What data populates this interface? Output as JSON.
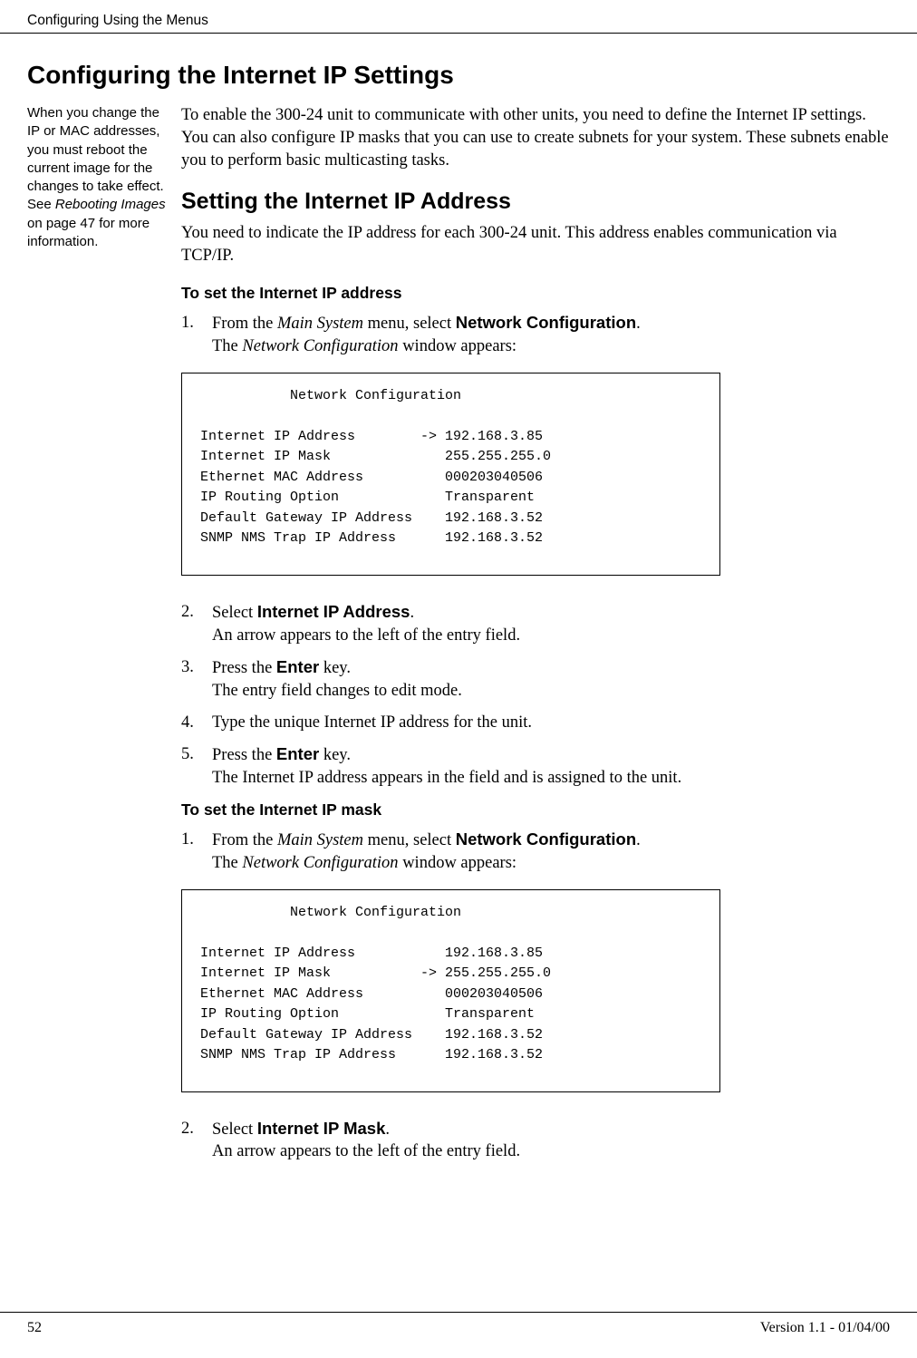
{
  "header": {
    "running_head": "Configuring Using the Menus"
  },
  "sidenote": {
    "l1": "When you change the IP or MAC addresses, you must reboot the current image for the changes to take effect. See ",
    "l2": "Rebooting Images",
    "l3": " on page 47 for more information."
  },
  "titles": {
    "h1": "Configuring the Internet IP Settings",
    "h2": "Setting the Internet IP Address",
    "h3a": "To set the Internet IP address",
    "h3b": "To set the Internet IP mask"
  },
  "para": {
    "intro": "To enable the 300-24 unit to communicate with other units, you need to define the Internet IP settings. You can also configure IP masks that you can use to create subnets for your system. These subnets enable you to perform basic multicasting tasks.",
    "setting": "You need to indicate the IP address for each 300-24 unit. This address enables communication via TCP/IP."
  },
  "steps_a": {
    "n1": "1.",
    "s1a": "From the ",
    "s1b": "Main System",
    "s1c": " menu, select ",
    "s1d": "Network Configuration",
    "s1e": ".",
    "s1f": "The ",
    "s1g": "Network Configuration",
    "s1h": " window appears:",
    "n2": "2.",
    "s2a": "Select ",
    "s2b": "Internet IP Address",
    "s2c": ".",
    "s2d": "An arrow appears to the left of the entry field.",
    "n3": "3.",
    "s3a": "Press the ",
    "s3b": "Enter",
    "s3c": " key.",
    "s3d": "The entry field changes to edit mode.",
    "n4": "4.",
    "s4a": "Type the unique Internet IP address for the unit.",
    "n5": "5.",
    "s5a": "Press the ",
    "s5b": "Enter",
    "s5c": " key.",
    "s5d": "The Internet IP address appears in the field and is assigned to the unit."
  },
  "steps_b": {
    "n1": "1.",
    "s1a": "From the ",
    "s1b": "Main System",
    "s1c": " menu, select ",
    "s1d": "Network Configuration",
    "s1e": ".",
    "s1f": "The ",
    "s1g": "Network Configuration",
    "s1h": " window appears:",
    "n2": "2.",
    "s2a": "Select ",
    "s2b": "Internet IP Mask",
    "s2c": ".",
    "s2d": "An arrow appears to the left of the entry field."
  },
  "term1_text": "           Network Configuration\n\nInternet IP Address        -> 192.168.3.85\nInternet IP Mask              255.255.255.0\nEthernet MAC Address          000203040506\nIP Routing Option             Transparent\nDefault Gateway IP Address    192.168.3.52\nSNMP NMS Trap IP Address      192.168.3.52",
  "term2_text": "           Network Configuration\n\nInternet IP Address           192.168.3.85\nInternet IP Mask           -> 255.255.255.0\nEthernet MAC Address          000203040506\nIP Routing Option             Transparent\nDefault Gateway IP Address    192.168.3.52\nSNMP NMS Trap IP Address      192.168.3.52",
  "footer": {
    "page": "52",
    "version": "Version 1.1 - 01/04/00"
  }
}
